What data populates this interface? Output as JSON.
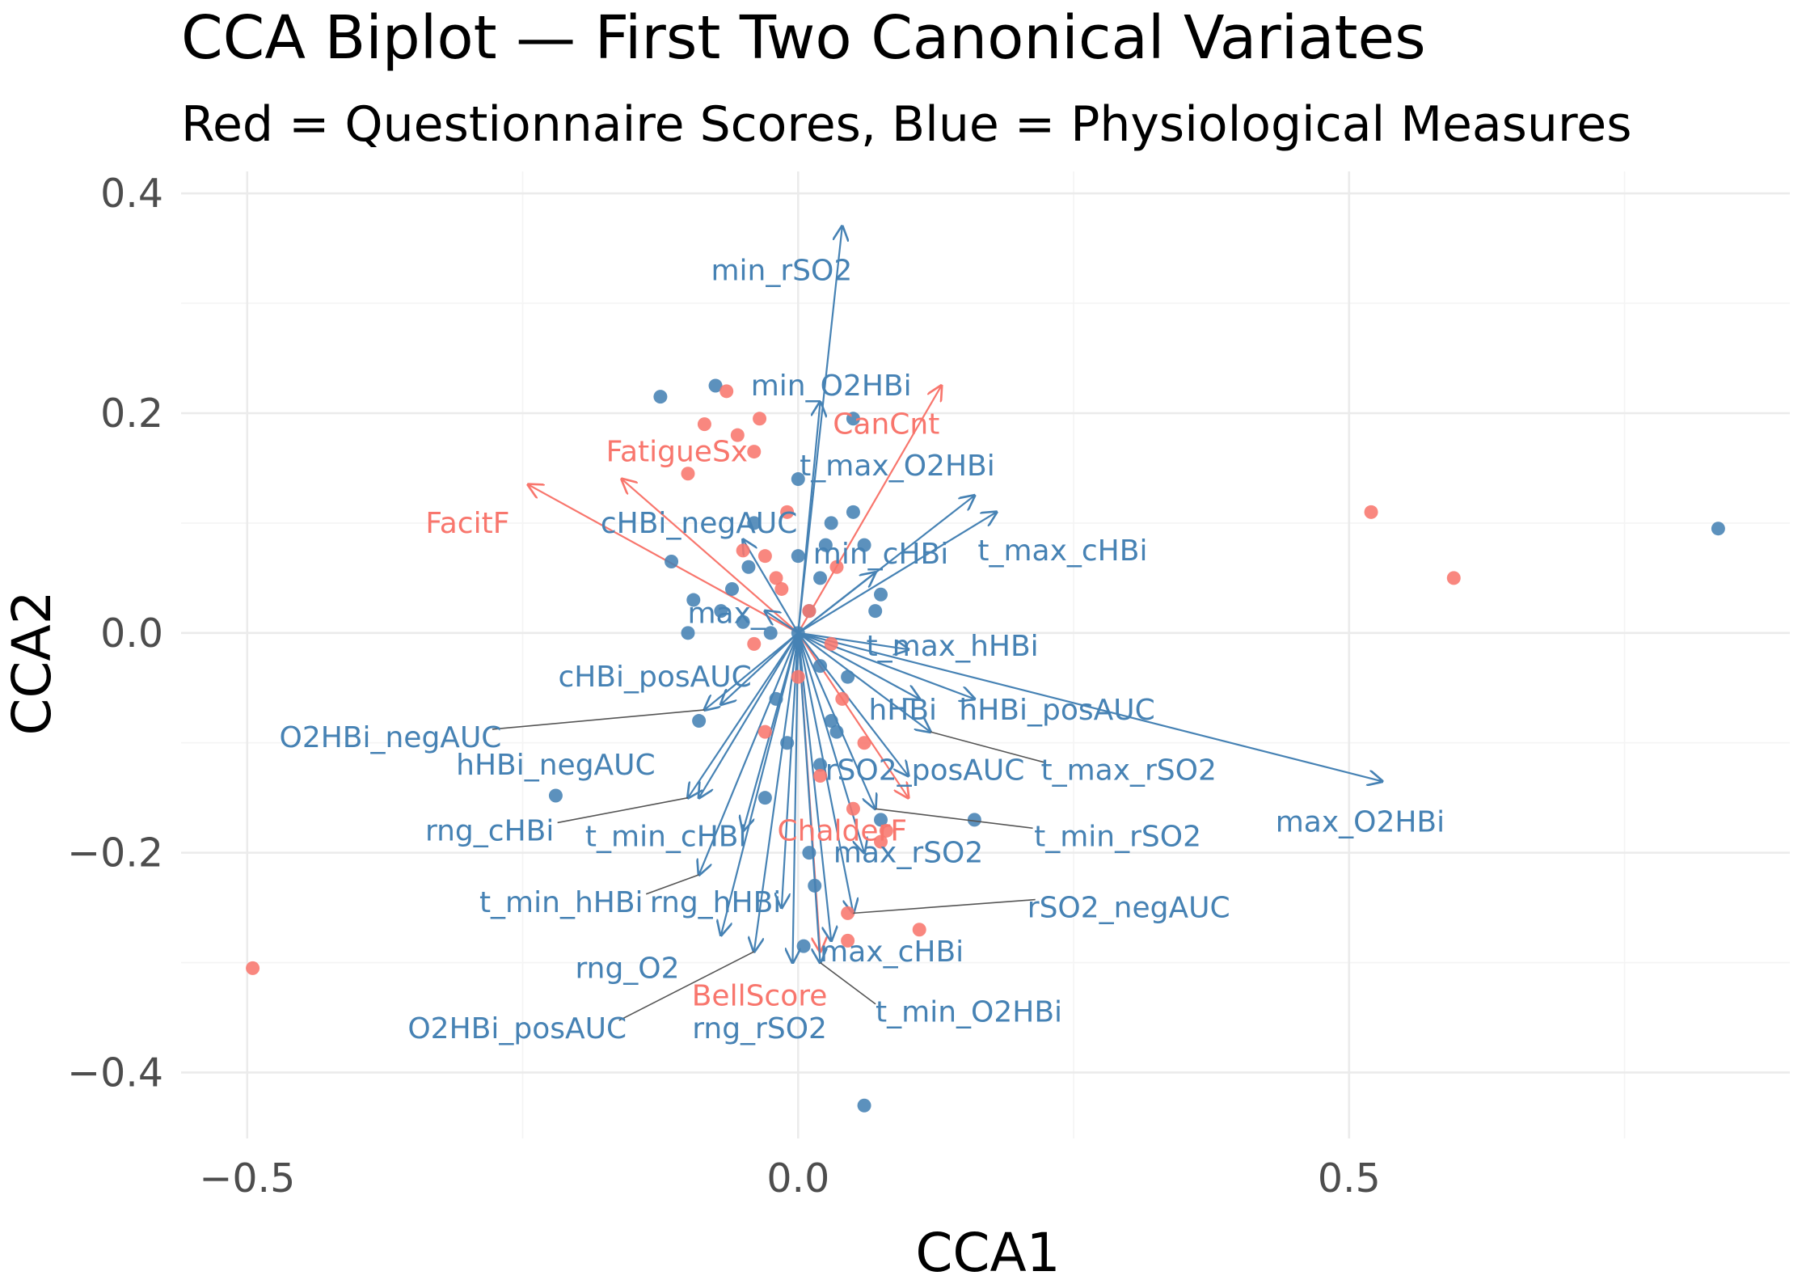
{
  "chart_data": {
    "type": "scatter",
    "title": "CCA Biplot — First Two Canonical Variates",
    "subtitle": "Red = Questionnaire Scores, Blue = Physiological Measures",
    "xlabel": "CCA1",
    "ylabel": "CCA2",
    "xlim": [
      -0.56,
      0.9
    ],
    "ylim": [
      -0.46,
      0.42
    ],
    "x_ticks": [
      -0.5,
      0.0,
      0.5
    ],
    "x_tick_labels": [
      "−0.5",
      "0.0",
      "0.5"
    ],
    "y_ticks": [
      -0.4,
      -0.2,
      0.0,
      0.2,
      0.4
    ],
    "y_tick_labels": [
      "−0.4",
      "−0.2",
      "0.0",
      "0.2",
      "0.4"
    ],
    "grid": true,
    "colors": {
      "questionnaire": "#f8766d",
      "physiological": "#4682b4",
      "connector": "#555555"
    },
    "questionnaire_points": [
      [
        -0.495,
        -0.305
      ],
      [
        0.52,
        0.11
      ],
      [
        0.595,
        0.05
      ],
      [
        -0.065,
        0.22
      ],
      [
        -0.085,
        0.19
      ],
      [
        -0.035,
        0.195
      ],
      [
        -0.055,
        0.18
      ],
      [
        -0.1,
        0.145
      ],
      [
        -0.04,
        0.165
      ],
      [
        -0.03,
        0.07
      ],
      [
        -0.05,
        0.075
      ],
      [
        -0.01,
        0.11
      ],
      [
        -0.02,
        0.05
      ],
      [
        0.01,
        0.02
      ],
      [
        0.03,
        -0.01
      ],
      [
        0.04,
        -0.06
      ],
      [
        0.06,
        -0.1
      ],
      [
        0.02,
        -0.13
      ],
      [
        0.05,
        -0.16
      ],
      [
        0.08,
        -0.18
      ],
      [
        0.045,
        -0.255
      ],
      [
        0.045,
        -0.28
      ],
      [
        0.11,
        -0.27
      ],
      [
        -0.04,
        -0.01
      ],
      [
        0.0,
        -0.04
      ],
      [
        -0.03,
        -0.09
      ],
      [
        0.075,
        -0.19
      ],
      [
        -0.015,
        0.04
      ],
      [
        0.035,
        0.06
      ]
    ],
    "physiological_points": [
      [
        0.835,
        0.095
      ],
      [
        -0.125,
        0.215
      ],
      [
        -0.075,
        0.225
      ],
      [
        0.05,
        0.195
      ],
      [
        -0.115,
        0.065
      ],
      [
        -0.095,
        0.03
      ],
      [
        -0.1,
        0.0
      ],
      [
        -0.22,
        -0.148
      ],
      [
        -0.09,
        -0.08
      ],
      [
        0.06,
        -0.43
      ],
      [
        0.005,
        -0.285
      ],
      [
        0.16,
        -0.17
      ],
      [
        0.075,
        -0.17
      ],
      [
        0.075,
        0.035
      ],
      [
        0.05,
        0.11
      ],
      [
        0.0,
        0.14
      ],
      [
        0.03,
        0.1
      ],
      [
        -0.04,
        0.1
      ],
      [
        0.06,
        0.08
      ],
      [
        0.02,
        0.05
      ],
      [
        -0.06,
        0.04
      ],
      [
        -0.05,
        0.01
      ],
      [
        0.0,
        0.0
      ],
      [
        0.01,
        0.02
      ],
      [
        0.02,
        -0.03
      ],
      [
        -0.02,
        -0.06
      ],
      [
        0.03,
        -0.08
      ],
      [
        -0.01,
        -0.1
      ],
      [
        0.02,
        -0.12
      ],
      [
        -0.03,
        -0.15
      ],
      [
        0.015,
        -0.23
      ],
      [
        0.01,
        -0.2
      ],
      [
        0.045,
        -0.04
      ],
      [
        -0.045,
        0.06
      ],
      [
        0.07,
        0.02
      ],
      [
        -0.07,
        0.02
      ],
      [
        0.035,
        -0.09
      ],
      [
        -0.025,
        0.0
      ],
      [
        0.0,
        0.07
      ],
      [
        0.025,
        0.08
      ]
    ],
    "vectors": [
      {
        "label": "FacitF",
        "group": "questionnaire",
        "x": -0.245,
        "y": 0.135,
        "label_x": -0.3,
        "label_y": 0.1,
        "leader": false
      },
      {
        "label": "FatigueSx",
        "group": "questionnaire",
        "x": -0.16,
        "y": 0.14,
        "label_x": -0.11,
        "label_y": 0.165,
        "leader": false
      },
      {
        "label": "CanCnt",
        "group": "questionnaire",
        "x": 0.13,
        "y": 0.225,
        "label_x": 0.08,
        "label_y": 0.19,
        "leader": false
      },
      {
        "label": "ChalderF",
        "group": "questionnaire",
        "x": 0.1,
        "y": -0.15,
        "label_x": 0.04,
        "label_y": -0.18,
        "leader": false
      },
      {
        "label": "BellScore",
        "group": "questionnaire",
        "x": 0.02,
        "y": -0.29,
        "label_x": -0.035,
        "label_y": -0.33,
        "leader": false
      },
      {
        "label": "min_rSO2",
        "group": "physiological",
        "x": 0.04,
        "y": 0.37,
        "label_x": -0.015,
        "label_y": 0.33,
        "leader": false
      },
      {
        "label": "min_O2HBi",
        "group": "physiological",
        "x": 0.02,
        "y": 0.21,
        "label_x": 0.03,
        "label_y": 0.225,
        "leader": false
      },
      {
        "label": "t_max_O2HBi",
        "group": "physiological",
        "x": 0.16,
        "y": 0.125,
        "label_x": 0.09,
        "label_y": 0.152,
        "leader": false
      },
      {
        "label": "cHBi_negAUC",
        "group": "physiological",
        "x": -0.05,
        "y": 0.085,
        "label_x": -0.09,
        "label_y": 0.1,
        "leader": false
      },
      {
        "label": "min_cHBi",
        "group": "physiological",
        "x": 0.07,
        "y": 0.055,
        "label_x": 0.075,
        "label_y": 0.072,
        "leader": false
      },
      {
        "label": "t_max_cHBi",
        "group": "physiological",
        "x": 0.18,
        "y": 0.11,
        "label_x": 0.24,
        "label_y": 0.075,
        "leader": false
      },
      {
        "label": "max_",
        "group": "physiological",
        "x": -0.03,
        "y": 0.02,
        "label_x": -0.065,
        "label_y": 0.018,
        "leader": false
      },
      {
        "label": "t_max_hHBi",
        "group": "physiological",
        "x": 0.1,
        "y": -0.015,
        "label_x": 0.14,
        "label_y": -0.012,
        "leader": false
      },
      {
        "label": "cHBi_posAUC",
        "group": "physiological",
        "x": -0.07,
        "y": -0.065,
        "label_x": -0.13,
        "label_y": -0.04,
        "leader": false
      },
      {
        "label": "hHBi_posAUC",
        "group": "physiological",
        "x": 0.16,
        "y": -0.06,
        "label_x": 0.235,
        "label_y": -0.07,
        "leader": false
      },
      {
        "label": "hHBi",
        "group": "physiological",
        "x": 0.11,
        "y": -0.06,
        "label_x": 0.095,
        "label_y": -0.07,
        "leader": false
      },
      {
        "label": "O2HBi_negAUC",
        "group": "physiological",
        "x": -0.085,
        "y": -0.07,
        "label_x": -0.37,
        "label_y": -0.095,
        "leader": true
      },
      {
        "label": "hHBi_negAUC",
        "group": "physiological",
        "x": -0.09,
        "y": -0.15,
        "label_x": -0.22,
        "label_y": -0.12,
        "leader": false
      },
      {
        "label": "rSO2_posAUC",
        "group": "physiological",
        "x": 0.1,
        "y": -0.13,
        "label_x": 0.115,
        "label_y": -0.125,
        "leader": false
      },
      {
        "label": "t_max_rSO2",
        "group": "physiological",
        "x": 0.12,
        "y": -0.09,
        "label_x": 0.3,
        "label_y": -0.125,
        "leader": true
      },
      {
        "label": "max_O2HBi",
        "group": "physiological",
        "x": 0.53,
        "y": -0.135,
        "label_x": 0.51,
        "label_y": -0.172,
        "leader": false
      },
      {
        "label": "rng_cHBi",
        "group": "physiological",
        "x": -0.1,
        "y": -0.15,
        "label_x": -0.28,
        "label_y": -0.18,
        "leader": true
      },
      {
        "label": "t_min_cHBi",
        "group": "physiological",
        "x": -0.05,
        "y": -0.18,
        "label_x": -0.12,
        "label_y": -0.185,
        "leader": false
      },
      {
        "label": "max_rSO2",
        "group": "physiological",
        "x": 0.06,
        "y": -0.2,
        "label_x": 0.1,
        "label_y": -0.2,
        "leader": false
      },
      {
        "label": "t_min_rSO2",
        "group": "physiological",
        "x": 0.07,
        "y": -0.16,
        "label_x": 0.29,
        "label_y": -0.185,
        "leader": true
      },
      {
        "label": "t_min_hHBi",
        "group": "physiological",
        "x": -0.09,
        "y": -0.22,
        "label_x": -0.215,
        "label_y": -0.245,
        "leader": true
      },
      {
        "label": "rng_hHBi",
        "group": "physiological",
        "x": -0.015,
        "y": -0.25,
        "label_x": -0.075,
        "label_y": -0.245,
        "leader": false
      },
      {
        "label": "rSO2_negAUC",
        "group": "physiological",
        "x": 0.05,
        "y": -0.255,
        "label_x": 0.3,
        "label_y": -0.25,
        "leader": true
      },
      {
        "label": "rng_O2",
        "group": "physiological",
        "x": -0.07,
        "y": -0.275,
        "label_x": -0.155,
        "label_y": -0.305,
        "leader": false
      },
      {
        "label": "max_cHBi",
        "group": "physiological",
        "x": 0.03,
        "y": -0.28,
        "label_x": 0.085,
        "label_y": -0.29,
        "leader": false
      },
      {
        "label": "O2HBi_posAUC",
        "group": "physiological",
        "x": -0.04,
        "y": -0.29,
        "label_x": -0.255,
        "label_y": -0.36,
        "leader": true
      },
      {
        "label": "rng_rSO2",
        "group": "physiological",
        "x": -0.005,
        "y": -0.3,
        "label_x": -0.035,
        "label_y": -0.36,
        "leader": false
      },
      {
        "label": "t_min_O2HBi",
        "group": "physiological",
        "x": 0.02,
        "y": -0.3,
        "label_x": 0.155,
        "label_y": -0.345,
        "leader": true
      }
    ]
  }
}
